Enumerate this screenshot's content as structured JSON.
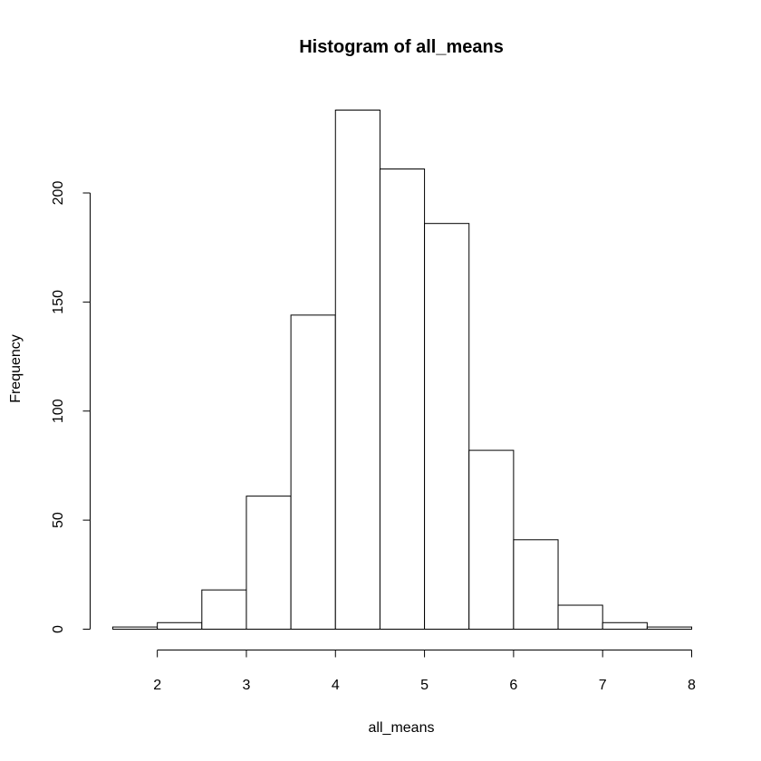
{
  "chart_data": {
    "type": "bar",
    "subtype": "histogram",
    "title": "Histogram of all_means",
    "xlabel": "all_means",
    "ylabel": "Frequency",
    "bins": [
      {
        "x0": 1.5,
        "x1": 2.0,
        "count": 1
      },
      {
        "x0": 2.0,
        "x1": 2.5,
        "count": 3
      },
      {
        "x0": 2.5,
        "x1": 3.0,
        "count": 18
      },
      {
        "x0": 3.0,
        "x1": 3.5,
        "count": 61
      },
      {
        "x0": 3.5,
        "x1": 4.0,
        "count": 144
      },
      {
        "x0": 4.0,
        "x1": 4.5,
        "count": 238
      },
      {
        "x0": 4.5,
        "x1": 5.0,
        "count": 211
      },
      {
        "x0": 5.0,
        "x1": 5.5,
        "count": 186
      },
      {
        "x0": 5.5,
        "x1": 6.0,
        "count": 82
      },
      {
        "x0": 6.0,
        "x1": 6.5,
        "count": 41
      },
      {
        "x0": 6.5,
        "x1": 7.0,
        "count": 11
      },
      {
        "x0": 7.0,
        "x1": 7.5,
        "count": 3
      },
      {
        "x0": 7.5,
        "x1": 8.0,
        "count": 1
      }
    ],
    "x_ticks": [
      2,
      3,
      4,
      5,
      6,
      7,
      8
    ],
    "y_ticks": [
      0,
      50,
      100,
      150,
      200
    ],
    "xlim": [
      1.5,
      8.0
    ],
    "ylim": [
      0,
      238
    ],
    "grid": false,
    "bar_fill": "#ffffff",
    "bar_stroke": "#000000"
  }
}
